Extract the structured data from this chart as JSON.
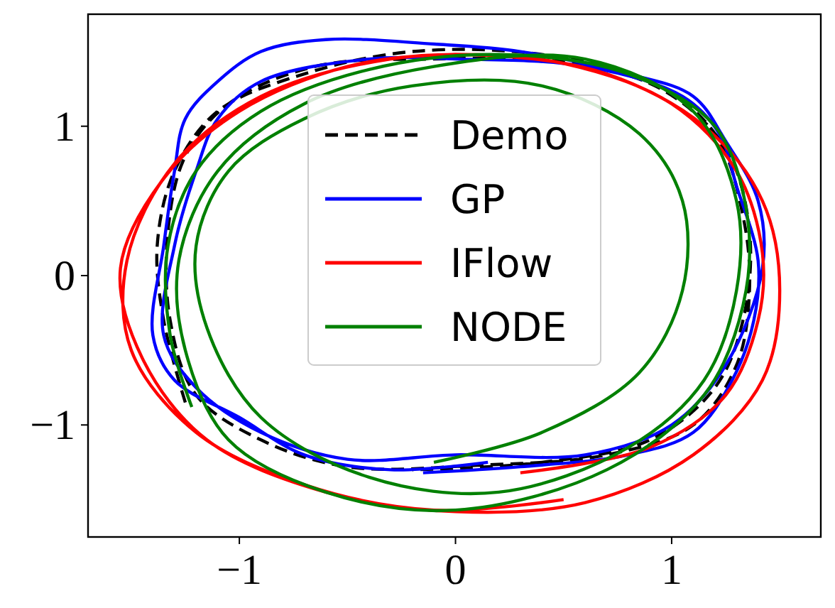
{
  "chart_data": {
    "type": "line",
    "xlim": [
      -1.7,
      1.69
    ],
    "ylim": [
      -1.75,
      1.75
    ],
    "xticks": [
      {
        "value": -1,
        "label": "−1"
      },
      0,
      1
    ],
    "yticks": [
      {
        "value": -1,
        "label": "−1"
      },
      0,
      1
    ],
    "grid": false,
    "legend": "top",
    "marker": "none",
    "series": [
      {
        "name": "Demo",
        "color": "#000000",
        "line_style": "dashed",
        "x": [
          -1.25,
          -1.35,
          -1.38,
          -1.3,
          -1.1,
          -0.7,
          -0.2,
          0.4,
          0.9,
          1.2,
          1.33,
          1.36,
          1.3,
          1.1,
          0.7,
          0.1,
          -0.5,
          -0.9,
          -1.2,
          -1.32,
          -1.33,
          -1.25,
          -1.05,
          -0.65,
          -0.1,
          0.5,
          0.95,
          1.25,
          1.36,
          1.33,
          1.2,
          0.9,
          0.4,
          -0.2
        ],
        "values": [
          -0.85,
          -0.3,
          0.2,
          0.7,
          1.1,
          1.35,
          1.5,
          1.48,
          1.3,
          0.95,
          0.4,
          -0.1,
          -0.6,
          -1.0,
          -1.2,
          -1.27,
          -1.28,
          -1.1,
          -0.8,
          -0.3,
          0.3,
          0.8,
          1.15,
          1.4,
          1.45,
          1.43,
          1.25,
          0.85,
          0.3,
          -0.3,
          -0.75,
          -1.1,
          -1.25,
          -1.3
        ]
      },
      {
        "name": "GP",
        "color": "#0000ff",
        "line_style": "solid",
        "x": [
          -0.15,
          0.3,
          0.8,
          1.1,
          1.28,
          1.38,
          1.4,
          1.3,
          1.22,
          1.05,
          0.6,
          0.0,
          -0.4,
          -0.9,
          -1.1,
          -1.2,
          -1.3,
          -1.35,
          -1.2,
          -0.9,
          -0.5,
          0.0,
          0.6,
          1.0,
          1.25,
          1.42,
          1.4,
          1.25,
          1.1,
          0.8,
          0.3,
          -0.1,
          -0.6,
          -0.9,
          -1.1,
          -1.25,
          -1.3,
          -1.35,
          -1.4,
          -1.3,
          -1.0,
          -0.7,
          -0.3,
          0.15
        ],
        "values": [
          -1.32,
          -1.28,
          -1.2,
          -1.05,
          -0.7,
          -0.3,
          0.1,
          0.6,
          0.95,
          1.2,
          1.4,
          1.45,
          1.45,
          1.3,
          1.05,
          0.7,
          0.2,
          -0.4,
          -0.75,
          -1.05,
          -1.23,
          -1.2,
          -1.2,
          -1.0,
          -0.6,
          0.05,
          0.5,
          0.9,
          1.2,
          1.35,
          1.5,
          1.55,
          1.58,
          1.5,
          1.3,
          1.05,
          0.7,
          0.2,
          -0.4,
          -0.7,
          -0.95,
          -1.2,
          -1.3,
          -1.25
        ]
      },
      {
        "name": "IFlow",
        "color": "#ff0000",
        "line_style": "solid",
        "x": [
          0.3,
          0.9,
          1.25,
          1.4,
          1.42,
          1.3,
          1.0,
          0.5,
          0,
          -0.5,
          -1.0,
          -1.35,
          -1.55,
          -1.45,
          -1.15,
          -0.6,
          0,
          0.6,
          1.1,
          1.42,
          1.5,
          1.42,
          1.15,
          0.7,
          0.2,
          -0.3,
          -0.9,
          -1.3,
          -1.52,
          -1.5,
          -1.2,
          -0.7,
          -0.1,
          0.5
        ],
        "values": [
          -1.32,
          -1.15,
          -0.8,
          -0.3,
          0.15,
          0.7,
          1.15,
          1.42,
          1.48,
          1.4,
          1.1,
          0.65,
          0.05,
          -0.55,
          -1.1,
          -1.45,
          -1.58,
          -1.52,
          -1.2,
          -0.7,
          -0.1,
          0.5,
          1.0,
          1.35,
          1.47,
          1.45,
          1.2,
          0.75,
          0.1,
          -0.5,
          -1.05,
          -1.4,
          -1.57,
          -1.5
        ]
      },
      {
        "name": "NODE",
        "color": "#008000",
        "line_style": "solid",
        "x": [
          -1.22,
          -1.32,
          -1.33,
          -1.2,
          -0.9,
          -0.4,
          0.2,
          0.8,
          1.2,
          1.35,
          1.33,
          1.15,
          0.7,
          0.0,
          -0.6,
          -1.05,
          -1.25,
          -1.28,
          -1.1,
          -0.7,
          -0.1,
          0.6,
          1.1,
          1.3,
          1.3,
          1.15,
          0.8,
          0.2,
          -0.4,
          -0.9,
          -1.15,
          -1.2,
          -1.05,
          -0.7,
          -0.2,
          0.4,
          0.85,
          1.05,
          1.05,
          0.85,
          0.4,
          -0.1
        ],
        "values": [
          -0.88,
          -0.4,
          0.2,
          0.7,
          1.1,
          1.38,
          1.48,
          1.35,
          1.0,
          0.4,
          -0.2,
          -0.8,
          -1.3,
          -1.57,
          -1.45,
          -1.1,
          -0.5,
          0.1,
          0.7,
          1.15,
          1.4,
          1.45,
          1.1,
          0.5,
          -0.1,
          -0.7,
          -1.15,
          -1.45,
          -1.35,
          -0.95,
          -0.35,
          0.2,
          0.7,
          1.05,
          1.27,
          1.27,
          0.95,
          0.5,
          -0.1,
          -0.65,
          -1.05,
          -1.25
        ]
      }
    ]
  }
}
